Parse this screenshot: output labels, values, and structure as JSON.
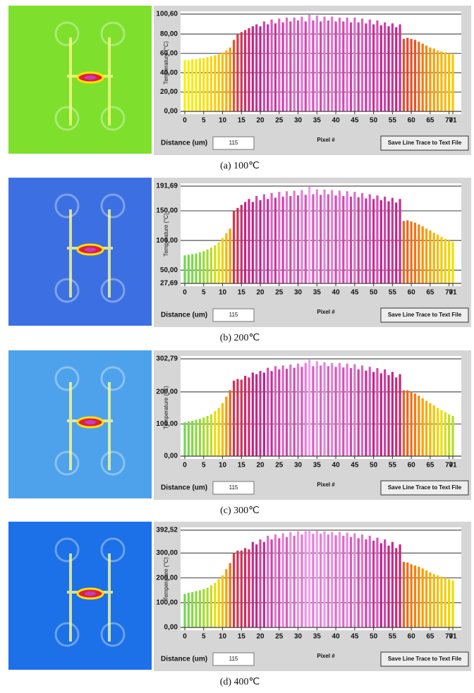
{
  "chart_data": [
    {
      "type": "bar",
      "caption": "(a) 100℃",
      "y_label": "Temperature (°C)",
      "x_label": "Pixel #",
      "distance_label": "Distance (um)",
      "distance_value": 115,
      "button": "Save Line Trace to Text File",
      "image_background": "#7ee02c",
      "colormap": [
        "#f8f000",
        "#ffa000",
        "#e8402a",
        "#c4208c",
        "#e884e0"
      ],
      "x": [
        0,
        1,
        2,
        3,
        4,
        5,
        6,
        7,
        8,
        9,
        10,
        11,
        12,
        13,
        14,
        15,
        16,
        17,
        18,
        19,
        20,
        21,
        22,
        23,
        24,
        25,
        26,
        27,
        28,
        29,
        30,
        31,
        32,
        33,
        34,
        35,
        36,
        37,
        38,
        39,
        40,
        41,
        42,
        43,
        44,
        45,
        46,
        47,
        48,
        49,
        50,
        51,
        52,
        53,
        54,
        55,
        56,
        57,
        58,
        59,
        60,
        61,
        62,
        63,
        64,
        65,
        66,
        67,
        68,
        69,
        70,
        71
      ],
      "values": [
        53,
        53,
        54,
        54,
        55,
        55,
        56,
        57,
        58,
        59,
        61,
        63,
        66,
        74,
        80,
        82,
        84,
        86,
        88,
        90,
        88,
        93,
        90,
        95,
        91,
        96,
        92,
        97,
        93,
        97,
        94,
        98,
        93,
        100,
        94,
        99,
        93,
        98,
        94,
        98,
        93,
        97,
        93,
        97,
        92,
        97,
        92,
        96,
        91,
        95,
        90,
        94,
        89,
        92,
        88,
        91,
        87,
        90,
        75,
        76,
        75,
        74,
        72,
        70,
        68,
        66,
        65,
        63,
        62,
        61,
        60,
        59
      ],
      "xlim": [
        0,
        71
      ],
      "xticks": [
        0,
        5,
        10,
        15,
        20,
        25,
        30,
        35,
        40,
        45,
        50,
        55,
        60,
        65,
        70,
        71
      ],
      "ylim": [
        0,
        100.6
      ],
      "yticks": [
        {
          "value": 0,
          "label": "0,00"
        },
        {
          "value": 20,
          "label": "20,00"
        },
        {
          "value": 40,
          "label": "40,00"
        },
        {
          "value": 60,
          "label": "60,00"
        },
        {
          "value": 80,
          "label": "80,00"
        },
        {
          "value": 100.6,
          "label": "100,60"
        }
      ],
      "grid": true
    },
    {
      "type": "bar",
      "caption": "(b) 200℃",
      "y_label": "Temperature (°C)",
      "x_label": "Pixel #",
      "distance_label": "Distance (um)",
      "distance_value": 115,
      "button": "Save Line Trace to Text File",
      "image_background": "#3c70e2",
      "colormap": [
        "#70d850",
        "#f0e000",
        "#ff9800",
        "#e03a30",
        "#c4208c",
        "#f0a0f0"
      ],
      "x": [
        0,
        1,
        2,
        3,
        4,
        5,
        6,
        7,
        8,
        9,
        10,
        11,
        12,
        13,
        14,
        15,
        16,
        17,
        18,
        19,
        20,
        21,
        22,
        23,
        24,
        25,
        26,
        27,
        28,
        29,
        30,
        31,
        32,
        33,
        34,
        35,
        36,
        37,
        38,
        39,
        40,
        41,
        42,
        43,
        44,
        45,
        46,
        47,
        48,
        49,
        50,
        51,
        52,
        53,
        54,
        55,
        56,
        57,
        58,
        59,
        60,
        61,
        62,
        63,
        64,
        65,
        66,
        67,
        68,
        69,
        70,
        71
      ],
      "values": [
        75,
        76,
        77,
        78,
        80,
        82,
        85,
        88,
        92,
        97,
        104,
        112,
        120,
        150,
        155,
        160,
        165,
        170,
        165,
        175,
        168,
        178,
        170,
        180,
        172,
        182,
        174,
        183,
        175,
        184,
        176,
        185,
        177,
        191,
        178,
        186,
        177,
        186,
        178,
        185,
        176,
        184,
        175,
        183,
        174,
        182,
        173,
        180,
        171,
        178,
        170,
        176,
        168,
        174,
        166,
        172,
        164,
        170,
        133,
        134,
        132,
        130,
        127,
        124,
        120,
        117,
        113,
        110,
        106,
        103,
        100,
        98
      ],
      "xlim": [
        0,
        71
      ],
      "xticks": [
        0,
        5,
        10,
        15,
        20,
        25,
        30,
        35,
        40,
        45,
        50,
        55,
        60,
        65,
        70,
        71
      ],
      "ylim": [
        27.69,
        191.69
      ],
      "yticks": [
        {
          "value": 27.69,
          "label": "27,69"
        },
        {
          "value": 50,
          "label": "50,00"
        },
        {
          "value": 100,
          "label": "100,00"
        },
        {
          "value": 150,
          "label": "150,00"
        },
        {
          "value": 191.69,
          "label": "191,69"
        }
      ],
      "grid": true
    },
    {
      "type": "bar",
      "caption": "(c) 300℃",
      "y_label": "Temperature (°C)",
      "x_label": "Pixel #",
      "distance_label": "Distance (um)",
      "distance_value": 115,
      "button": "Save Line Trace to Text File",
      "image_background": "#4ea2ec",
      "colormap": [
        "#70d850",
        "#f0e000",
        "#ff9800",
        "#e03a30",
        "#c4208c",
        "#f0a0f0"
      ],
      "x": [
        0,
        1,
        2,
        3,
        4,
        5,
        6,
        7,
        8,
        9,
        10,
        11,
        12,
        13,
        14,
        15,
        16,
        17,
        18,
        19,
        20,
        21,
        22,
        23,
        24,
        25,
        26,
        27,
        28,
        29,
        30,
        31,
        32,
        33,
        34,
        35,
        36,
        37,
        38,
        39,
        40,
        41,
        42,
        43,
        44,
        45,
        46,
        47,
        48,
        49,
        50,
        51,
        52,
        53,
        54,
        55,
        56,
        57,
        58,
        59,
        60,
        61,
        62,
        63,
        64,
        65,
        66,
        67,
        68,
        69,
        70,
        71
      ],
      "values": [
        105,
        108,
        110,
        113,
        116,
        120,
        125,
        130,
        140,
        150,
        165,
        185,
        205,
        235,
        240,
        238,
        250,
        245,
        260,
        255,
        265,
        260,
        275,
        265,
        280,
        270,
        282,
        272,
        285,
        275,
        288,
        278,
        290,
        300,
        280,
        295,
        282,
        292,
        280,
        290,
        278,
        290,
        276,
        288,
        274,
        286,
        270,
        282,
        266,
        278,
        262,
        274,
        258,
        270,
        252,
        262,
        245,
        255,
        205,
        205,
        200,
        195,
        188,
        180,
        172,
        165,
        158,
        150,
        143,
        137,
        130,
        125
      ],
      "xlim": [
        0,
        71
      ],
      "xticks": [
        0,
        5,
        10,
        15,
        20,
        25,
        30,
        35,
        40,
        45,
        50,
        55,
        60,
        65,
        70,
        71
      ],
      "ylim": [
        0,
        302.79
      ],
      "yticks": [
        {
          "value": 0,
          "label": "0,00"
        },
        {
          "value": 100,
          "label": "100,00"
        },
        {
          "value": 200,
          "label": "200,00"
        },
        {
          "value": 302.79,
          "label": "302,79"
        }
      ],
      "grid": true
    },
    {
      "type": "bar",
      "caption": "(d) 400℃",
      "y_label": "Temperature (°C)",
      "x_label": "Pixel #",
      "distance_label": "Distance (um)",
      "distance_value": 115,
      "button": "Save Line Trace to Text File",
      "image_background": "#1c70e8",
      "colormap": [
        "#70d850",
        "#f0e000",
        "#ff9800",
        "#e03a30",
        "#c4208c",
        "#f0a0f0"
      ],
      "x": [
        0,
        1,
        2,
        3,
        4,
        5,
        6,
        7,
        8,
        9,
        10,
        11,
        12,
        13,
        14,
        15,
        16,
        17,
        18,
        19,
        20,
        21,
        22,
        23,
        24,
        25,
        26,
        27,
        28,
        29,
        30,
        31,
        32,
        33,
        34,
        35,
        36,
        37,
        38,
        39,
        40,
        41,
        42,
        43,
        44,
        45,
        46,
        47,
        48,
        49,
        50,
        51,
        52,
        53,
        54,
        55,
        56,
        57,
        58,
        59,
        60,
        61,
        62,
        63,
        64,
        65,
        66,
        67,
        68,
        69,
        70,
        71
      ],
      "values": [
        135,
        140,
        143,
        147,
        150,
        155,
        160,
        170,
        180,
        195,
        210,
        235,
        260,
        300,
        310,
        310,
        320,
        315,
        345,
        335,
        355,
        345,
        370,
        355,
        375,
        360,
        380,
        365,
        385,
        370,
        388,
        375,
        388,
        392,
        378,
        390,
        378,
        388,
        375,
        385,
        372,
        385,
        370,
        382,
        365,
        380,
        360,
        375,
        355,
        370,
        350,
        362,
        340,
        355,
        330,
        345,
        320,
        335,
        265,
        262,
        255,
        250,
        245,
        238,
        230,
        222,
        215,
        210,
        205,
        200,
        195,
        190
      ],
      "xlim": [
        0,
        71
      ],
      "xticks": [
        0,
        5,
        10,
        15,
        20,
        25,
        30,
        35,
        40,
        45,
        50,
        55,
        60,
        65,
        70,
        71
      ],
      "ylim": [
        0,
        392.52
      ],
      "yticks": [
        {
          "value": 0,
          "label": "0,00"
        },
        {
          "value": 100,
          "label": "100,00"
        },
        {
          "value": 200,
          "label": "200,00"
        },
        {
          "value": 300,
          "label": "300,00"
        },
        {
          "value": 392.52,
          "label": "392,52"
        }
      ],
      "grid": true
    }
  ]
}
